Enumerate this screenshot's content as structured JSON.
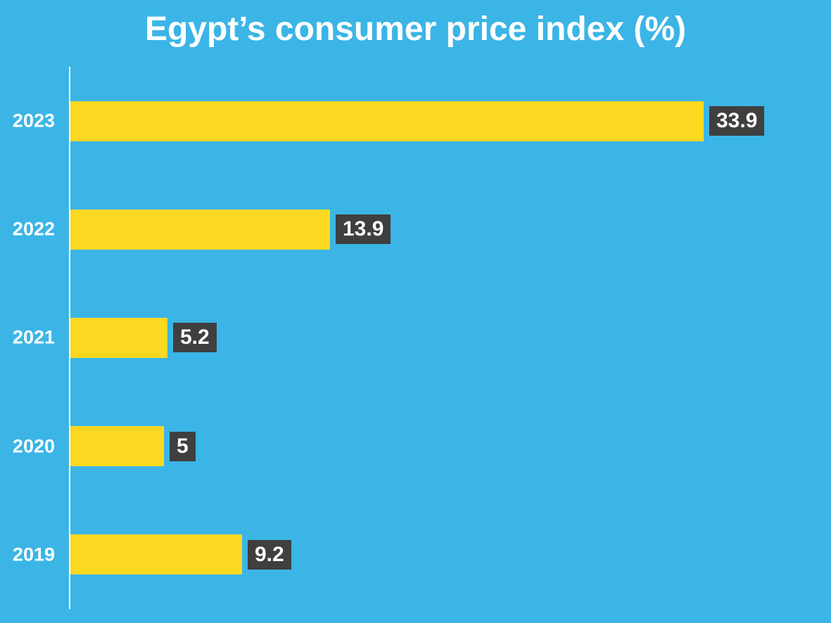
{
  "chart_data": {
    "type": "bar",
    "orientation": "horizontal",
    "title": "Egypt’s consumer price index (%)",
    "categories": [
      "2023",
      "2022",
      "2021",
      "2020",
      "2019"
    ],
    "values": [
      33.9,
      13.9,
      5.2,
      5,
      9.2
    ],
    "value_labels": [
      "33.9",
      "13.9",
      "5.2",
      "5",
      "9.2"
    ],
    "xlabel": "",
    "ylabel": "",
    "xlim": [
      0,
      40.7
    ],
    "grid": false,
    "legend": false,
    "colors": {
      "background": "#3bb5e6",
      "bar": "#fdd820",
      "value_badge_bg": "#3f3f3f",
      "text": "#ffffff",
      "axis_line": "#ffffff"
    }
  }
}
